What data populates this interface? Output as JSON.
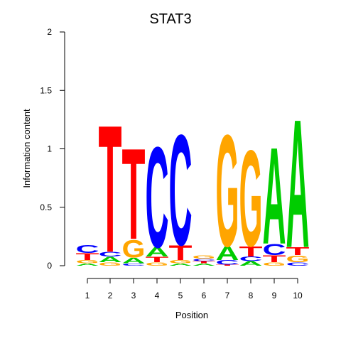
{
  "chart_data": {
    "type": "sequence-logo",
    "title": "STAT3",
    "xlabel": "Position",
    "ylabel": "Information content",
    "ylim": [
      0,
      2
    ],
    "yticks": [
      0,
      0.5,
      1,
      1.5,
      2
    ],
    "ytick_labels": [
      "0",
      "0.5",
      "1",
      "1.5",
      "2"
    ],
    "positions": [
      "1",
      "2",
      "3",
      "4",
      "5",
      "6",
      "7",
      "8",
      "9",
      "10"
    ],
    "colors": {
      "A": "#00cc00",
      "C": "#0000ff",
      "G": "#ffa500",
      "T": "#ff0000"
    },
    "stacks": [
      [
        {
          "letter": "A",
          "height": 0.02
        },
        {
          "letter": "G",
          "height": 0.03
        },
        {
          "letter": "T",
          "height": 0.06
        },
        {
          "letter": "C",
          "height": 0.07
        }
      ],
      [
        {
          "letter": "G",
          "height": 0.03
        },
        {
          "letter": "A",
          "height": 0.05
        },
        {
          "letter": "C",
          "height": 0.04
        },
        {
          "letter": "T",
          "height": 1.12
        }
      ],
      [
        {
          "letter": "C",
          "height": 0.02
        },
        {
          "letter": "A",
          "height": 0.05
        },
        {
          "letter": "G",
          "height": 0.16
        },
        {
          "letter": "T",
          "height": 0.8
        }
      ],
      [
        {
          "letter": "G",
          "height": 0.03
        },
        {
          "letter": "T",
          "height": 0.05
        },
        {
          "letter": "A",
          "height": 0.08
        },
        {
          "letter": "C",
          "height": 0.91
        }
      ],
      [
        {
          "letter": "A",
          "height": 0.02
        },
        {
          "letter": "G",
          "height": 0.03
        },
        {
          "letter": "T",
          "height": 0.13
        },
        {
          "letter": "C",
          "height": 1.0
        }
      ],
      [
        {
          "letter": "A",
          "height": 0.02
        },
        {
          "letter": "T",
          "height": 0.02
        },
        {
          "letter": "C",
          "height": 0.02
        },
        {
          "letter": "G",
          "height": 0.03
        }
      ],
      [
        {
          "letter": "T",
          "height": 0.01
        },
        {
          "letter": "C",
          "height": 0.04
        },
        {
          "letter": "A",
          "height": 0.12
        },
        {
          "letter": "G",
          "height": 1.01
        }
      ],
      [
        {
          "letter": "A",
          "height": 0.04
        },
        {
          "letter": "C",
          "height": 0.04
        },
        {
          "letter": "T",
          "height": 0.09
        },
        {
          "letter": "G",
          "height": 0.87
        }
      ],
      [
        {
          "letter": "G",
          "height": 0.03
        },
        {
          "letter": "T",
          "height": 0.06
        },
        {
          "letter": "C",
          "height": 0.1
        },
        {
          "letter": "A",
          "height": 0.85
        }
      ],
      [
        {
          "letter": "C",
          "height": 0.03
        },
        {
          "letter": "G",
          "height": 0.06
        },
        {
          "letter": "T",
          "height": 0.07
        },
        {
          "letter": "A",
          "height": 1.13
        }
      ]
    ]
  }
}
